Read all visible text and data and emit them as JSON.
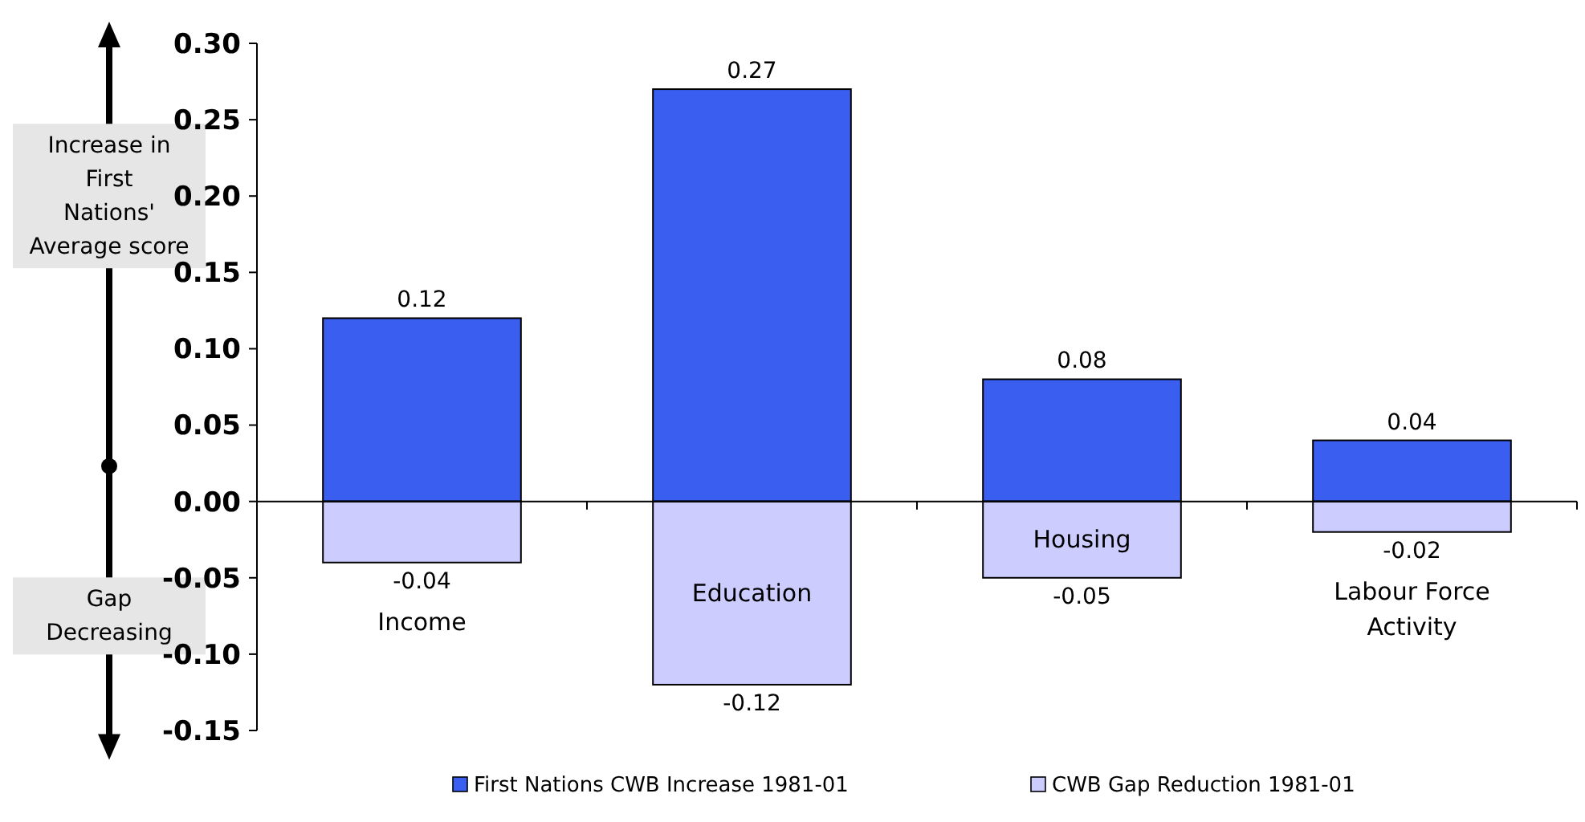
{
  "chart_data": {
    "type": "bar",
    "categories": [
      "Income",
      "Education",
      "Housing",
      "Labour Force Activity"
    ],
    "series": [
      {
        "name": "First Nations CWB Increase 1981-01",
        "color": "#3a5ef0",
        "values": [
          0.12,
          0.27,
          0.08,
          0.04
        ]
      },
      {
        "name": "CWB Gap Reduction 1981-01",
        "color": "#ccccff",
        "values": [
          -0.04,
          -0.12,
          -0.05,
          -0.02
        ]
      }
    ],
    "stacked": true,
    "data_labels": true,
    "legend": "bottom",
    "ylim": [
      -0.15,
      0.3
    ],
    "yticks": [
      {
        "value": -0.15,
        "label": "-0.15"
      },
      {
        "value": -0.1,
        "label": "-0.10"
      },
      {
        "value": -0.05,
        "label": "-0.05"
      },
      {
        "value": 0,
        "label": "0.00"
      },
      {
        "value": 0.05,
        "label": "0.05"
      },
      {
        "value": 0.1,
        "label": "0.10"
      },
      {
        "value": 0.15,
        "label": "0.15"
      },
      {
        "value": 0.2,
        "label": "0.20"
      },
      {
        "value": 0.25,
        "label": "0.25"
      },
      {
        "value": 0.3,
        "label": "0.30"
      }
    ],
    "annotations": [
      "Increase in First Nations' Average score",
      "Gap Decreasing"
    ]
  }
}
